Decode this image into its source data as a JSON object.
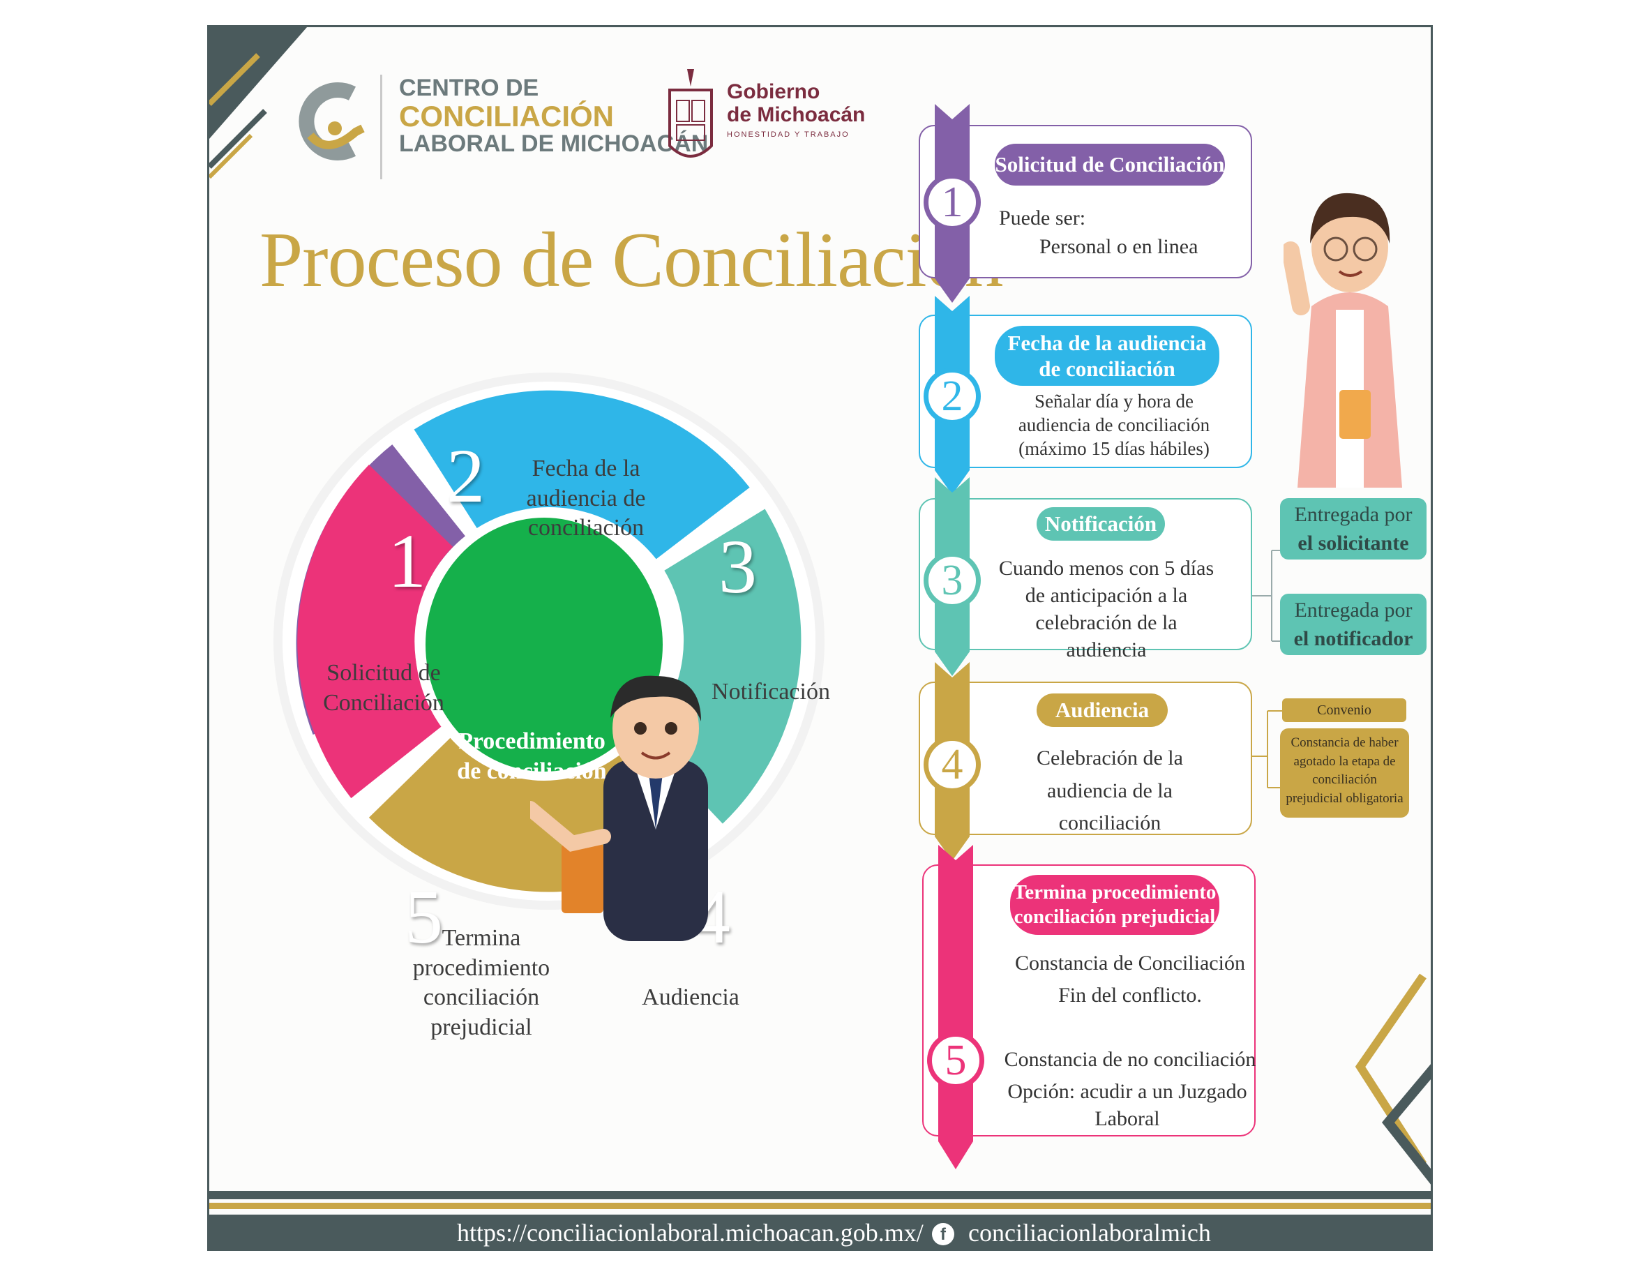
{
  "header": {
    "logo_line1": "CENTRO DE",
    "logo_line2": "CONCILIACIÓN",
    "logo_line3": "LABORAL DE MICHOACÁN",
    "gov_line1": "Gobierno",
    "gov_line2": "de Michoacán",
    "gov_motto": "HONESTIDAD Y TRABAJO"
  },
  "title": "Proceso de Conciliación",
  "wheel": {
    "center": "Procedimiento de conciliación",
    "segments": [
      {
        "num": "1",
        "label": "Solicitud de Conciliación",
        "color": "#8360a8"
      },
      {
        "num": "2",
        "label": "Fecha de la audiencia de conciliación",
        "color": "#2fb6e8"
      },
      {
        "num": "3",
        "label": "Notificación",
        "color": "#5ec4b3"
      },
      {
        "num": "4",
        "label": "Audiencia",
        "color": "#c9a646"
      },
      {
        "num": "5",
        "label": "Termina procedimiento conciliación prejudicial",
        "color": "#ec3379"
      }
    ],
    "center_color": "#15b04b"
  },
  "steps": [
    {
      "num": "1",
      "title": "Solicitud de Conciliación",
      "line1": "Puede ser:",
      "line2": "Personal o en linea",
      "color": "#8360a8"
    },
    {
      "num": "2",
      "title": "Fecha de la audiencia de conciliación",
      "text": "Señalar día y hora de audiencia de conciliación (máximo 15 días hábiles)",
      "color": "#2fb6e8"
    },
    {
      "num": "3",
      "title": "Notificación",
      "text": "Cuando menos con 5 días de anticipación a la celebración de la audiencia",
      "color": "#5ec4b3"
    },
    {
      "num": "4",
      "title": "Audiencia",
      "text": "Celebración de la audiencia de la conciliación",
      "color": "#c9a646"
    },
    {
      "num": "5",
      "title": "Termina procedimiento conciliación prejudicial",
      "text1": "Constancia de Conciliación",
      "text2": "Fin del conflicto.",
      "text3": "Constancia de no conciliación",
      "text4": "Opción: acudir a un Juzgado Laboral",
      "color": "#ec3379"
    }
  ],
  "notif_options": [
    {
      "line1": "Entregada por",
      "line2": "el solicitante"
    },
    {
      "line1": "Entregada por",
      "line2": "el notificador"
    }
  ],
  "audiencia_options": [
    "Convenio",
    "Constancia de haber agotado la etapa de conciliación prejudicial obligatoria"
  ],
  "footer": {
    "url": "https://conciliacionlaboral.michoacan.gob.mx/",
    "facebook": "conciliacionlaboralmich"
  },
  "colors": {
    "gold": "#c9a646",
    "slate": "#4a5a5c"
  }
}
